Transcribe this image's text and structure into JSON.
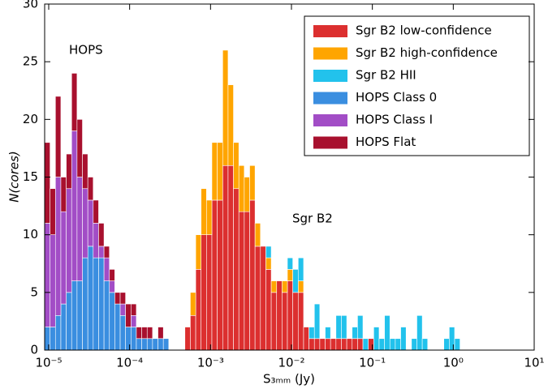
{
  "chart_data": {
    "type": "histogram",
    "xlabel": "S₃ₘₘ (Jy)",
    "ylabel": "N(cores)",
    "annotations": [
      "HOPS",
      "Sgr B2"
    ],
    "xscale": "log",
    "legend": "upper right",
    "xlim": [
      8.91e-06,
      10
    ],
    "ylim": [
      0,
      30
    ],
    "xticks": [
      {
        "value": 1e-05,
        "label": "10⁻⁵"
      },
      {
        "value": 0.0001,
        "label": "10⁻⁴"
      },
      {
        "value": 0.001,
        "label": "10⁻³"
      },
      {
        "value": 0.01,
        "label": "10⁻²"
      },
      {
        "value": 0.1,
        "label": "10⁻¹"
      },
      {
        "value": 1,
        "label": "10⁰"
      },
      {
        "value": 10,
        "label": "10¹"
      }
    ],
    "yticks": [
      0,
      5,
      10,
      15,
      20,
      25,
      30
    ],
    "bins": [
      8.91e-06,
      1.039e-05,
      1.211e-05,
      1.413e-05,
      1.647e-05,
      1.92e-05,
      2.239e-05,
      2.611e-05,
      3.044e-05,
      3.548e-05,
      4.137e-05,
      4.824e-05,
      5.624e-05,
      6.557e-05,
      7.645e-05,
      8.91e-05,
      0.0001039,
      0.0001211,
      0.0001413,
      0.0001647,
      0.000192,
      0.0002239,
      0.0002611,
      0.0003044,
      0.0003548,
      0.0004137,
      0.0004824,
      0.0005624,
      0.0006557,
      0.0007645,
      0.000891,
      0.001039,
      0.001211,
      0.001413,
      0.001647,
      0.00192,
      0.002239,
      0.002611,
      0.003044,
      0.003548,
      0.004137,
      0.004824,
      0.005624,
      0.006557,
      0.007645,
      0.00891,
      0.01039,
      0.01211,
      0.01413,
      0.01647,
      0.0192,
      0.02239,
      0.02611,
      0.03044,
      0.03548,
      0.04137,
      0.04824,
      0.05624,
      0.06557,
      0.07645,
      0.0891,
      0.1039,
      0.1211,
      0.1413,
      0.1647,
      0.192,
      0.2239,
      0.2611,
      0.3044,
      0.3548,
      0.4137,
      0.4824,
      0.5624,
      0.6557,
      0.7645,
      0.891,
      1.039,
      1.211,
      1.413,
      1.647,
      1.92
    ],
    "series": [
      {
        "name": "Sgr B2 low-confidence",
        "color": "#dc2f2f",
        "values": [
          0,
          0,
          0,
          0,
          0,
          0,
          0,
          0,
          0,
          0,
          0,
          0,
          0,
          0,
          0,
          0,
          0,
          0,
          0,
          0,
          0,
          0,
          0,
          0,
          0,
          0,
          2,
          3,
          7,
          10,
          10,
          13,
          13,
          16,
          16,
          14,
          12,
          12,
          13,
          9,
          9,
          7,
          5,
          6,
          5,
          6,
          5,
          5,
          2,
          1,
          1,
          1,
          1,
          1,
          1,
          1,
          1,
          1,
          1,
          0,
          1,
          0,
          0,
          0,
          0,
          0,
          0,
          0,
          0,
          0,
          0,
          0,
          0,
          0,
          0,
          0,
          0,
          0,
          0,
          0
        ]
      },
      {
        "name": "Sgr B2 high-confidence",
        "color": "#ffa500",
        "values": [
          0,
          0,
          0,
          0,
          0,
          0,
          0,
          0,
          0,
          0,
          0,
          0,
          0,
          0,
          0,
          0,
          0,
          0,
          0,
          0,
          0,
          0,
          0,
          0,
          0,
          0,
          0,
          2,
          3,
          4,
          3,
          5,
          5,
          10,
          7,
          4,
          4,
          3,
          3,
          2,
          0,
          1,
          1,
          0,
          1,
          1,
          0,
          1,
          0,
          0,
          0,
          0,
          0,
          0,
          0,
          0,
          0,
          0,
          0,
          0,
          0,
          0,
          0,
          0,
          0,
          0,
          0,
          0,
          0,
          0,
          0,
          0,
          0,
          0,
          0,
          0,
          0,
          0,
          0,
          0
        ]
      },
      {
        "name": "Sgr B2 HII",
        "color": "#22c2ec",
        "values": [
          0,
          0,
          0,
          0,
          0,
          0,
          0,
          0,
          0,
          0,
          0,
          0,
          0,
          0,
          0,
          0,
          0,
          0,
          0,
          0,
          0,
          0,
          0,
          0,
          0,
          0,
          0,
          0,
          0,
          0,
          0,
          0,
          0,
          0,
          0,
          0,
          0,
          0,
          0,
          0,
          0,
          1,
          0,
          0,
          0,
          1,
          2,
          2,
          0,
          1,
          3,
          0,
          1,
          0,
          2,
          2,
          0,
          1,
          2,
          1,
          0,
          2,
          1,
          3,
          1,
          1,
          2,
          0,
          1,
          3,
          1,
          0,
          0,
          0,
          1,
          2,
          1,
          0,
          0,
          0
        ]
      },
      {
        "name": "HOPS Class 0",
        "color": "#3a8ee0",
        "values": [
          2,
          2,
          3,
          4,
          5,
          6,
          6,
          8,
          9,
          8,
          8,
          6,
          5,
          4,
          3,
          2,
          2,
          1,
          1,
          1,
          1,
          1,
          1,
          0,
          0,
          0,
          0,
          0,
          0,
          0,
          0,
          0,
          0,
          0,
          0,
          0,
          0,
          0,
          0,
          0,
          0,
          0,
          0,
          0,
          0,
          0,
          0,
          0,
          0,
          0,
          0,
          0,
          0,
          0,
          0,
          0,
          0,
          0,
          0,
          0,
          0,
          0,
          0,
          0,
          0,
          0,
          0,
          0,
          0,
          0,
          0,
          0,
          0,
          0,
          0,
          0,
          0,
          0,
          0,
          0
        ]
      },
      {
        "name": "HOPS Class I",
        "color": "#a24dc6",
        "values": [
          9,
          8,
          12,
          8,
          9,
          13,
          9,
          6,
          4,
          3,
          1,
          2,
          1,
          0,
          1,
          0,
          1,
          0,
          0,
          0,
          0,
          0,
          0,
          0,
          0,
          0,
          0,
          0,
          0,
          0,
          0,
          0,
          0,
          0,
          0,
          0,
          0,
          0,
          0,
          0,
          0,
          0,
          0,
          0,
          0,
          0,
          0,
          0,
          0,
          0,
          0,
          0,
          0,
          0,
          0,
          0,
          0,
          0,
          0,
          0,
          0,
          0,
          0,
          0,
          0,
          0,
          0,
          0,
          0,
          0,
          0,
          0,
          0,
          0,
          0,
          0,
          0,
          0,
          0,
          0
        ]
      },
      {
        "name": "HOPS Flat",
        "color": "#a8102e",
        "values": [
          7,
          4,
          7,
          3,
          3,
          5,
          5,
          3,
          2,
          2,
          2,
          1,
          1,
          1,
          1,
          2,
          1,
          1,
          1,
          1,
          0,
          1,
          0,
          0,
          0,
          0,
          0,
          0,
          0,
          0,
          0,
          0,
          0,
          0,
          0,
          0,
          0,
          0,
          0,
          0,
          0,
          0,
          0,
          0,
          0,
          0,
          0,
          0,
          0,
          0,
          0,
          0,
          0,
          0,
          0,
          0,
          0,
          0,
          0,
          0,
          0,
          0,
          0,
          0,
          0,
          0,
          0,
          0,
          0,
          0,
          0,
          0,
          0,
          0,
          0,
          0,
          0,
          0,
          0,
          0
        ]
      }
    ]
  }
}
